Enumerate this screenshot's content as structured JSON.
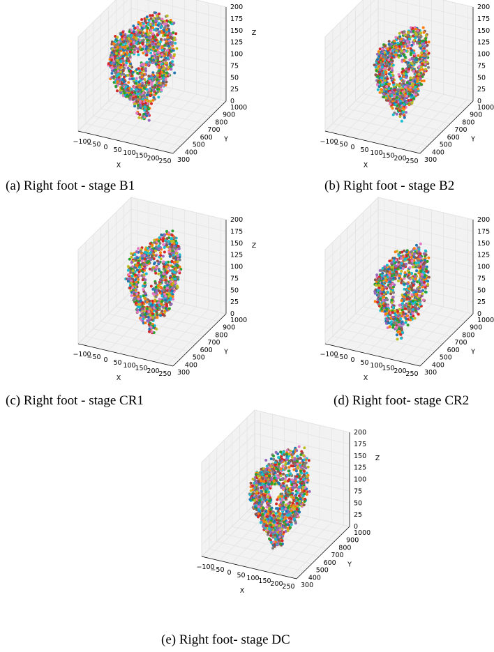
{
  "colors": {
    "pane_fill": "#f2f2f2",
    "pane_edge": "#bfbfbf",
    "grid": "#e4e4e4",
    "axis_line": "#000000",
    "palette": [
      "#1f77b4",
      "#ff7f0e",
      "#2ca02c",
      "#d62728",
      "#9467bd",
      "#8c564b",
      "#e377c2",
      "#7f7f7f",
      "#bcbd22",
      "#17becf"
    ]
  },
  "chart_data": [
    {
      "type": "scatter",
      "projection": "3d",
      "caption": "(a) Right foot - stage B1",
      "xlabel": "X",
      "ylabel": "Y",
      "zlabel": "Z",
      "xlim": [
        -125,
        275
      ],
      "ylim": [
        300,
        1000
      ],
      "zlim": [
        0,
        200
      ],
      "x_ticks": [
        "−100",
        "−50",
        "0",
        "50",
        "100",
        "150",
        "200",
        "250"
      ],
      "y_ticks": [
        "300",
        "400",
        "500",
        "600",
        "700",
        "800",
        "900",
        "1000"
      ],
      "z_ticks": [
        "0",
        "25",
        "50",
        "75",
        "100",
        "125",
        "150",
        "175",
        "200"
      ],
      "grid": true,
      "cloud": {
        "x_range": [
          -80,
          120
        ],
        "y_range": [
          450,
          950
        ],
        "z_range": [
          0,
          195
        ],
        "points": 1500
      }
    },
    {
      "type": "scatter",
      "projection": "3d",
      "caption": "(b) Right foot - stage B2",
      "xlabel": "X",
      "ylabel": "Y",
      "zlabel": "Z",
      "xlim": [
        -125,
        275
      ],
      "ylim": [
        300,
        1000
      ],
      "zlim": [
        0,
        200
      ],
      "x_ticks": [
        "−100",
        "−50",
        "0",
        "50",
        "100",
        "150",
        "200",
        "250"
      ],
      "y_ticks": [
        "300",
        "400",
        "500",
        "600",
        "700",
        "800",
        "900",
        "1000"
      ],
      "z_ticks": [
        "0",
        "25",
        "50",
        "75",
        "100",
        "125",
        "150",
        "175",
        "200"
      ],
      "grid": true,
      "cloud": {
        "x_range": [
          -10,
          135
        ],
        "y_range": [
          500,
          950
        ],
        "z_range": [
          0,
          170
        ],
        "points": 1200
      }
    },
    {
      "type": "scatter",
      "projection": "3d",
      "caption": "(c) Right foot - stage CR1",
      "xlabel": "X",
      "ylabel": "Y",
      "zlabel": "Z",
      "xlim": [
        -125,
        275
      ],
      "ylim": [
        300,
        1000
      ],
      "zlim": [
        0,
        200
      ],
      "x_ticks": [
        "−100",
        "−50",
        "0",
        "50",
        "100",
        "150",
        "200",
        "250"
      ],
      "y_ticks": [
        "300",
        "400",
        "500",
        "600",
        "700",
        "800",
        "900",
        "1000"
      ],
      "z_ticks": [
        "0",
        "25",
        "50",
        "75",
        "100",
        "125",
        "150",
        "175",
        "200"
      ],
      "grid": true,
      "cloud": {
        "x_range": [
          0,
          130
        ],
        "y_range": [
          450,
          950
        ],
        "z_range": [
          0,
          190
        ],
        "points": 1000
      }
    },
    {
      "type": "scatter",
      "projection": "3d",
      "caption": "(d) Right foot- stage CR2",
      "xlabel": "X",
      "ylabel": "Y",
      "zlabel": "Z",
      "xlim": [
        -125,
        275
      ],
      "ylim": [
        300,
        1000
      ],
      "zlim": [
        0,
        200
      ],
      "x_ticks": [
        "−100",
        "−50",
        "0",
        "50",
        "100",
        "150",
        "200",
        "250"
      ],
      "y_ticks": [
        "300",
        "400",
        "500",
        "600",
        "700",
        "800",
        "900",
        "1000"
      ],
      "z_ticks": [
        "0",
        "25",
        "50",
        "75",
        "100",
        "125",
        "150",
        "175",
        "200"
      ],
      "grid": true,
      "cloud": {
        "x_range": [
          20,
          150
        ],
        "y_range": [
          400,
          900
        ],
        "z_range": [
          0,
          165
        ],
        "points": 1000
      }
    },
    {
      "type": "scatter",
      "projection": "3d",
      "caption": "(e) Right foot- stage DC",
      "xlabel": "X",
      "ylabel": "Y",
      "zlabel": "Z",
      "xlim": [
        -125,
        275
      ],
      "ylim": [
        300,
        1000
      ],
      "zlim": [
        0,
        200
      ],
      "x_ticks": [
        "−100",
        "−50",
        "0",
        "50",
        "100",
        "150",
        "200",
        "250"
      ],
      "y_ticks": [
        "300",
        "400",
        "500",
        "600",
        "700",
        "800",
        "900",
        "1000"
      ],
      "z_ticks": [
        "0",
        "25",
        "50",
        "75",
        "100",
        "125",
        "150",
        "175",
        "200"
      ],
      "grid": true,
      "cloud": {
        "x_range": [
          0,
          150
        ],
        "y_range": [
          450,
          950
        ],
        "z_range": [
          0,
          180
        ],
        "points": 1400
      }
    }
  ]
}
